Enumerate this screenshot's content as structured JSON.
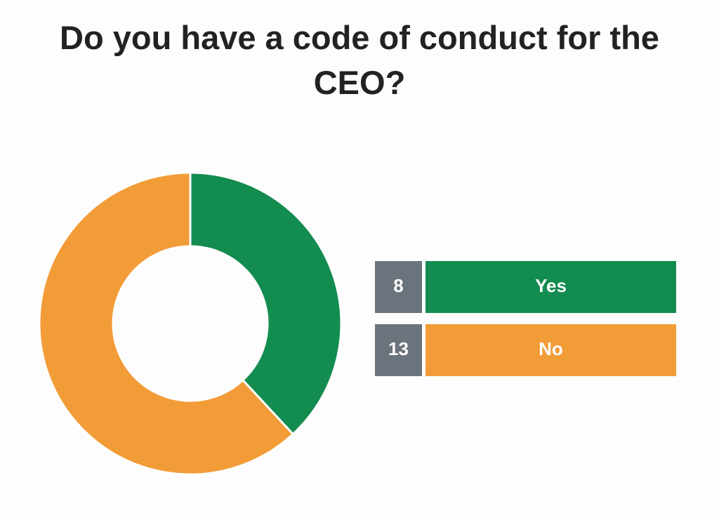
{
  "chart_data": {
    "type": "donut",
    "title": "Do you have a code of conduct for the CEO?",
    "categories": [
      "Yes",
      "No"
    ],
    "values": [
      8,
      13
    ],
    "colors": [
      "#138c4f",
      "#f29c38"
    ]
  }
}
